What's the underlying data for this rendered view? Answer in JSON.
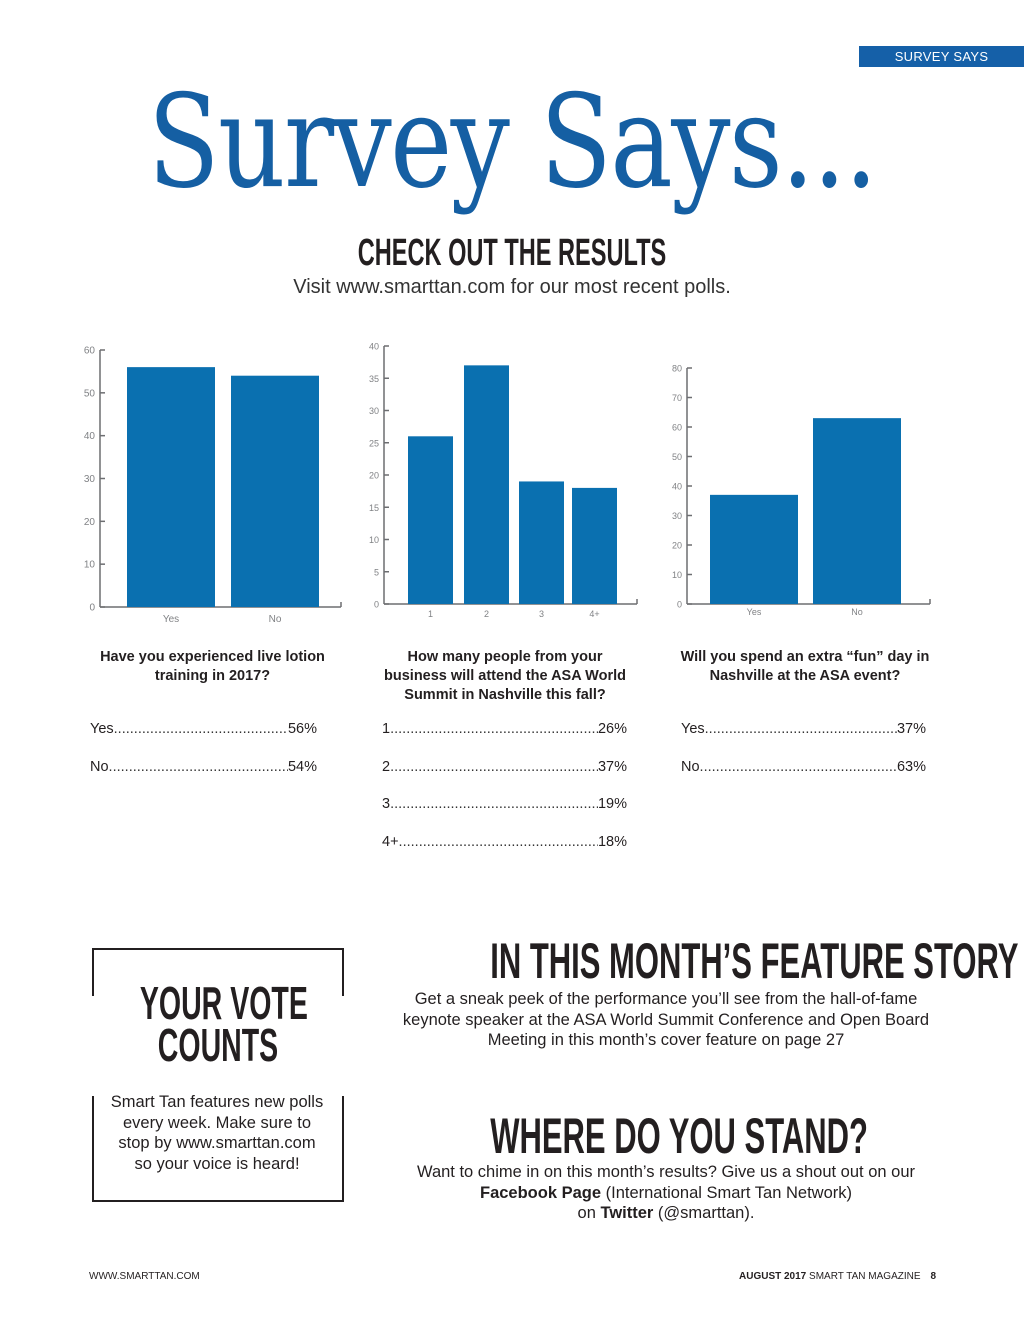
{
  "section_tag": "SURVEY SAYS",
  "title": "Survey Says...",
  "subtitle": "CHECK OUT THE RESULTS",
  "visit_text": "Visit www.smarttan.com for our most recent polls.",
  "colors": {
    "accent": "#155fa3",
    "bar": "#0a70b0",
    "axis": "#6d6e71"
  },
  "chart_data": [
    {
      "type": "bar",
      "categories": [
        "Yes",
        "No"
      ],
      "values": [
        56,
        54
      ],
      "ylim": [
        0,
        60
      ],
      "yticks": [
        0,
        10,
        20,
        30,
        40,
        50,
        60
      ]
    },
    {
      "type": "bar",
      "categories": [
        "1",
        "2",
        "3",
        "4+"
      ],
      "values": [
        26,
        37,
        19,
        18
      ],
      "ylim": [
        0,
        40
      ],
      "yticks": [
        0,
        5,
        10,
        15,
        20,
        25,
        30,
        35,
        40
      ]
    },
    {
      "type": "bar",
      "categories": [
        "Yes",
        "No"
      ],
      "values": [
        37,
        63
      ],
      "ylim": [
        0,
        80
      ],
      "yticks": [
        0,
        10,
        20,
        30,
        40,
        50,
        60,
        70,
        80
      ]
    }
  ],
  "polls": [
    {
      "question_lines": [
        "Have you experienced live lotion",
        "training in 2017?"
      ],
      "results": [
        {
          "label": "Yes ",
          "pct": "56%"
        },
        {
          "label": "No",
          "pct": "54%"
        }
      ]
    },
    {
      "question_lines": [
        "How many people from your",
        "business will attend the ASA World",
        "Summit in Nashville this fall?"
      ],
      "results": [
        {
          "label": "1 ",
          "pct": "26%"
        },
        {
          "label": "2 ",
          "pct": "37%"
        },
        {
          "label": "3 ",
          "pct": "19%"
        },
        {
          "label": "4+ ",
          "pct": "18%"
        }
      ]
    },
    {
      "question_lines": [
        "Will you spend an extra “fun” day in",
        "Nashville at the ASA event?"
      ],
      "results": [
        {
          "label": "Yes ",
          "pct": "37%"
        },
        {
          "label": "No",
          "pct": "63%"
        }
      ]
    }
  ],
  "vote": {
    "title_lines": [
      "YOUR VOTE",
      "COUNTS"
    ],
    "text_lines": [
      "Smart Tan features new polls",
      "every week. Make sure to",
      "stop by www.smarttan.com",
      "so your voice is heard!"
    ]
  },
  "feature": {
    "heading": "IN THIS MONTH’S FEATURE STORY",
    "lines": [
      "Get a sneak peek of the performance you’ll see from the hall-of-fame",
      "keynote speaker at the ASA World Summit Conference and Open Board",
      "Meeting in this month’s cover feature on page 27"
    ]
  },
  "stand": {
    "heading": "WHERE DO YOU STAND?",
    "line1": "Want to chime in on this month’s results? Give us a shout out on our",
    "fb_bold": "Facebook Page",
    "fb_rest": " (International Smart Tan Network)",
    "tw_pre": "on ",
    "tw_bold": "Twitter",
    "tw_rest": " (@smarttan)."
  },
  "footer": {
    "left": "WWW.SMARTTAN.COM",
    "issue": "AUGUST 2017",
    "magazine": " SMART TAN MAGAZINE",
    "page": "8"
  }
}
